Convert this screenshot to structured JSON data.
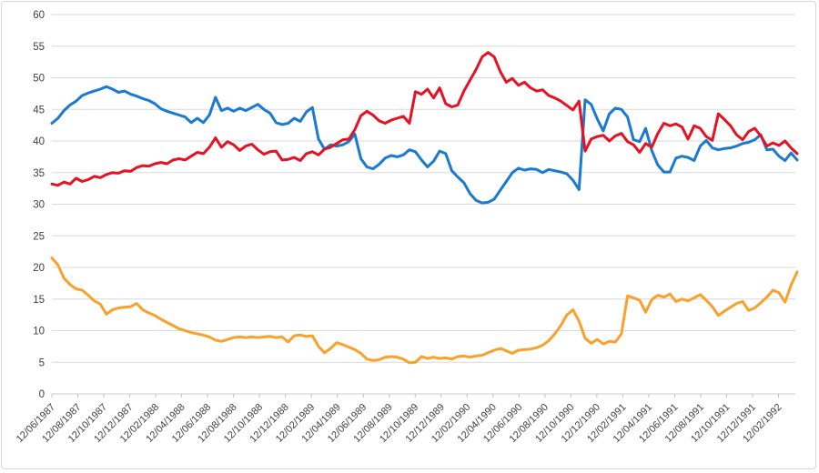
{
  "chart_data": {
    "type": "line",
    "title": "",
    "xlabel": "",
    "ylabel": "",
    "ylim": [
      0,
      60
    ],
    "ytick_step": 5,
    "grid": true,
    "legend_position": "none",
    "x_labels": [
      "12/06/1987",
      "12/08/1987",
      "12/10/1987",
      "12/12/1987",
      "12/02/1988",
      "12/04/1988",
      "12/06/1988",
      "12/08/1988",
      "12/10/1988",
      "12/12/1988",
      "12/02/1989",
      "12/04/1989",
      "12/06/1989",
      "12/08/1989",
      "12/10/1989",
      "12/12/1989",
      "12/02/1990",
      "12/04/1990",
      "12/06/1990",
      "12/08/1990",
      "12/10/1990",
      "12/12/1990",
      "12/02/1991",
      "12/04/1991",
      "12/06/1991",
      "12/08/1991",
      "12/10/1991",
      "12/12/1991",
      "12/02/1992"
    ],
    "series": [
      {
        "name": "blue-series",
        "color": "#1979D3",
        "values": [
          42.8,
          43.6,
          44.8,
          45.7,
          46.3,
          47.2,
          47.6,
          47.9,
          48.2,
          48.6,
          48.2,
          47.7,
          47.9,
          47.4,
          47.1,
          46.7,
          46.4,
          45.9,
          45.1,
          44.7,
          44.4,
          44.1,
          43.8,
          42.9,
          43.6,
          42.9,
          44.1,
          46.9,
          44.8,
          45.2,
          44.7,
          45.2,
          44.8,
          45.3,
          45.8,
          45.0,
          44.4,
          42.9,
          42.6,
          42.8,
          43.6,
          43.1,
          44.6,
          45.3,
          40.3,
          38.7,
          39.4,
          39.2,
          39.4,
          39.9,
          41.1,
          37.2,
          35.9,
          35.6,
          36.3,
          37.3,
          37.7,
          37.5,
          37.8,
          38.6,
          38.3,
          37.0,
          35.9,
          36.8,
          38.4,
          38.0,
          35.3,
          34.3,
          33.4,
          31.7,
          30.6,
          30.2,
          30.3,
          30.8,
          32.2,
          33.6,
          35.0,
          35.7,
          35.4,
          35.6,
          35.5,
          35.0,
          35.5,
          35.3,
          35.1,
          34.8,
          33.8,
          32.3,
          46.5,
          45.8,
          43.5,
          41.6,
          44.3,
          45.2,
          45.0,
          43.8,
          40.2,
          39.9,
          42.0,
          38.5,
          36.2,
          35.1,
          35.1,
          37.3,
          37.6,
          37.4,
          36.9,
          39.2,
          40.1,
          38.9,
          38.6,
          38.8,
          38.9,
          39.2,
          39.6,
          39.8,
          40.2,
          41.0,
          38.6,
          38.7,
          37.6,
          36.9,
          38.1,
          37.0
        ]
      },
      {
        "name": "red-series",
        "color": "#E81123",
        "values": [
          33.2,
          33.0,
          33.5,
          33.2,
          34.1,
          33.6,
          33.9,
          34.4,
          34.2,
          34.7,
          35.0,
          34.9,
          35.3,
          35.2,
          35.8,
          36.1,
          36.0,
          36.4,
          36.6,
          36.4,
          37.0,
          37.2,
          37.0,
          37.6,
          38.2,
          38.0,
          39.0,
          40.5,
          39.0,
          39.9,
          39.4,
          38.5,
          39.2,
          39.5,
          38.6,
          37.9,
          38.3,
          38.4,
          37.0,
          37.1,
          37.4,
          36.9,
          38.0,
          38.3,
          37.8,
          38.7,
          39.0,
          39.6,
          40.2,
          40.3,
          41.8,
          44.0,
          44.7,
          44.1,
          43.2,
          42.8,
          43.3,
          43.6,
          43.9,
          42.8,
          47.8,
          47.4,
          48.2,
          46.8,
          48.4,
          45.9,
          45.4,
          45.7,
          47.9,
          49.6,
          51.3,
          53.3,
          54.0,
          53.3,
          51.0,
          49.3,
          49.9,
          48.8,
          49.3,
          48.4,
          47.9,
          48.1,
          47.2,
          46.8,
          46.3,
          45.6,
          44.9,
          46.3,
          38.4,
          40.3,
          40.7,
          40.9,
          40.0,
          40.8,
          41.2,
          39.9,
          39.4,
          38.2,
          39.6,
          39.0,
          41.2,
          42.8,
          42.4,
          42.7,
          42.2,
          40.3,
          42.4,
          42.0,
          40.7,
          40.1,
          44.3,
          43.4,
          42.4,
          41.0,
          40.2,
          41.5,
          42.0,
          40.8,
          39.2,
          39.7,
          39.3,
          40.0,
          38.9,
          38.0
        ]
      },
      {
        "name": "orange-series",
        "color": "#F9A12B",
        "values": [
          21.5,
          20.4,
          18.3,
          17.3,
          16.6,
          16.4,
          15.6,
          14.7,
          14.2,
          12.6,
          13.3,
          13.6,
          13.7,
          13.8,
          14.3,
          13.3,
          12.8,
          12.4,
          11.8,
          11.3,
          10.8,
          10.3,
          10.0,
          9.7,
          9.5,
          9.3,
          9.0,
          8.5,
          8.3,
          8.6,
          8.9,
          9.0,
          8.9,
          9.0,
          8.9,
          9.0,
          9.1,
          8.9,
          9.0,
          8.2,
          9.2,
          9.3,
          9.1,
          9.2,
          7.5,
          6.5,
          7.2,
          8.1,
          7.8,
          7.4,
          7.0,
          6.4,
          5.5,
          5.3,
          5.4,
          5.8,
          5.9,
          5.8,
          5.5,
          4.9,
          5.0,
          5.9,
          5.6,
          5.8,
          5.6,
          5.7,
          5.5,
          5.9,
          6.0,
          5.8,
          6.0,
          6.1,
          6.5,
          6.9,
          7.2,
          6.8,
          6.4,
          6.9,
          7.0,
          7.1,
          7.3,
          7.7,
          8.4,
          9.5,
          10.8,
          12.5,
          13.3,
          11.5,
          8.8,
          8.0,
          8.6,
          7.9,
          8.3,
          8.2,
          9.5,
          15.5,
          15.2,
          14.8,
          12.9,
          14.9,
          15.6,
          15.3,
          15.8,
          14.6,
          15.0,
          14.7,
          15.2,
          15.7,
          14.8,
          13.8,
          12.4,
          13.1,
          13.7,
          14.3,
          14.6,
          13.2,
          13.6,
          14.4,
          15.3,
          16.4,
          16.0,
          14.5,
          17.2,
          19.3
        ]
      }
    ],
    "colors": {
      "grid": "#D9D9D9",
      "axis_line": "#C9C9C9",
      "tick": "#BFBFBF",
      "label_text": "#404040",
      "background": "#FFFFFF",
      "frame_border": "#D7D7D7"
    }
  }
}
